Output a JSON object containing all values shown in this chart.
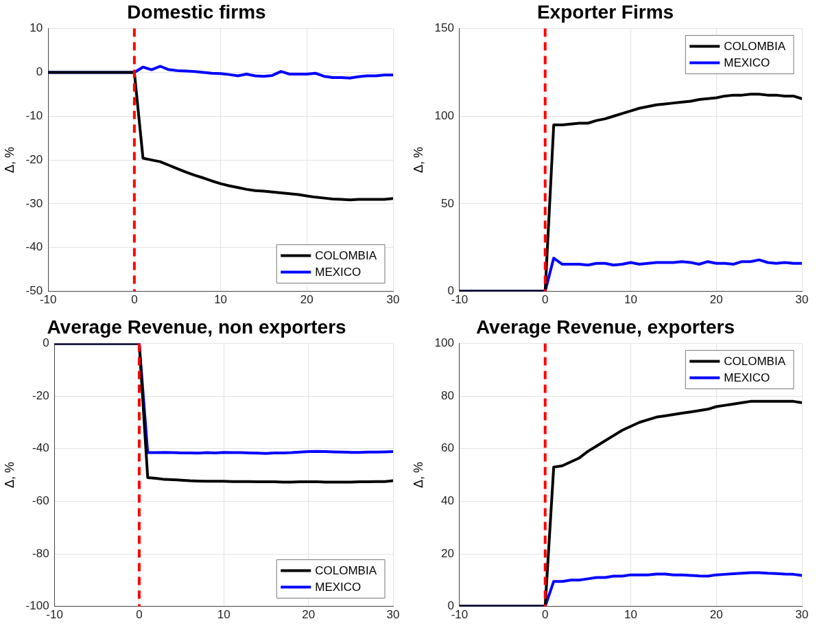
{
  "chart_data": [
    {
      "type": "line",
      "title": "Domestic firms",
      "ylabel": "Δ, %",
      "x": [
        -10,
        0,
        1,
        2,
        3,
        4,
        5,
        6,
        7,
        8,
        9,
        10,
        11,
        12,
        13,
        14,
        15,
        16,
        17,
        18,
        19,
        20,
        21,
        22,
        23,
        24,
        25,
        26,
        27,
        28,
        29,
        30
      ],
      "xlim": [
        -10,
        30
      ],
      "xticks": [
        -10,
        0,
        10,
        20,
        30
      ],
      "ylim": [
        -50,
        10
      ],
      "yticks": [
        -50,
        -40,
        -30,
        -20,
        -10,
        0,
        10
      ],
      "grid": true,
      "legend": "bottom right",
      "line_style": "solid",
      "marker": "none",
      "ref_lines": [
        {
          "axis": "x",
          "value": 0,
          "color": "#ff0000",
          "line_style": "dashed"
        }
      ],
      "series": [
        {
          "name": "COLOMBIA",
          "color": "#000000",
          "values": [
            0,
            0,
            -19.6,
            -20,
            -20.4,
            -21.2,
            -22,
            -22.8,
            -23.5,
            -24.1,
            -24.8,
            -25.4,
            -25.9,
            -26.3,
            -26.7,
            -27,
            -27.1,
            -27.3,
            -27.5,
            -27.7,
            -27.9,
            -28.2,
            -28.5,
            -28.7,
            -28.9,
            -29,
            -29.1,
            -29,
            -29,
            -29,
            -29,
            -28.8
          ]
        },
        {
          "name": "MEXICO",
          "color": "#0000ff",
          "values": [
            0,
            0,
            1.2,
            0.6,
            1.4,
            0.6,
            0.4,
            0.3,
            0.2,
            0,
            -0.2,
            -0.3,
            -0.5,
            -0.8,
            -0.4,
            -0.8,
            -0.9,
            -0.7,
            0.2,
            -0.4,
            -0.4,
            -0.4,
            -0.2,
            -0.9,
            -1.2,
            -1.2,
            -1.3,
            -1,
            -0.8,
            -0.8,
            -0.6,
            -0.6
          ]
        }
      ]
    },
    {
      "type": "line",
      "title": "Exporter Firms",
      "ylabel": "Δ, %",
      "x": [
        -10,
        0,
        1,
        2,
        3,
        4,
        5,
        6,
        7,
        8,
        9,
        10,
        11,
        12,
        13,
        14,
        15,
        16,
        17,
        18,
        19,
        20,
        21,
        22,
        23,
        24,
        25,
        26,
        27,
        28,
        29,
        30
      ],
      "xlim": [
        -10,
        30
      ],
      "xticks": [
        -10,
        0,
        10,
        20,
        30
      ],
      "ylim": [
        0,
        150
      ],
      "yticks": [
        0,
        50,
        100,
        150
      ],
      "grid": true,
      "legend": "top right",
      "line_style": "solid",
      "marker": "none",
      "ref_lines": [
        {
          "axis": "x",
          "value": 0,
          "color": "#ff0000",
          "line_style": "dashed"
        }
      ],
      "series": [
        {
          "name": "COLOMBIA",
          "color": "#000000",
          "values": [
            0,
            0,
            95,
            95,
            95.5,
            96,
            96,
            97.5,
            98.5,
            100,
            101.5,
            103,
            104.5,
            105.5,
            106.5,
            107,
            107.5,
            108,
            108.5,
            109.5,
            110,
            110.5,
            111.5,
            112,
            112,
            112.5,
            112.5,
            112,
            112,
            111.5,
            111.5,
            110
          ]
        },
        {
          "name": "MEXICO",
          "color": "#0000ff",
          "values": [
            0,
            0,
            19,
            15.5,
            15.5,
            15.5,
            15,
            16,
            16,
            15,
            15.5,
            16.5,
            15.5,
            16,
            16.5,
            16.5,
            16.5,
            17,
            16.5,
            15.5,
            17,
            16,
            16,
            15.5,
            17,
            17,
            18,
            16.5,
            16,
            16.5,
            16,
            16
          ]
        }
      ]
    },
    {
      "type": "line",
      "title": "Average Revenue, non exporters",
      "ylabel": "Δ, %",
      "x": [
        -10,
        0,
        1,
        2,
        3,
        4,
        5,
        6,
        7,
        8,
        9,
        10,
        11,
        12,
        13,
        14,
        15,
        16,
        17,
        18,
        19,
        20,
        21,
        22,
        23,
        24,
        25,
        26,
        27,
        28,
        29,
        30
      ],
      "xlim": [
        -10,
        30
      ],
      "xticks": [
        -10,
        0,
        10,
        20,
        30
      ],
      "ylim": [
        -100,
        0
      ],
      "yticks": [
        -100,
        -80,
        -60,
        -40,
        -20,
        0
      ],
      "grid": true,
      "legend": "bottom right",
      "line_style": "solid",
      "marker": "none",
      "ref_lines": [
        {
          "axis": "x",
          "value": 0,
          "color": "#ff0000",
          "line_style": "dashed"
        }
      ],
      "series": [
        {
          "name": "COLOMBIA",
          "color": "#000000",
          "values": [
            0,
            0,
            -51,
            -51.3,
            -51.7,
            -51.8,
            -52,
            -52.2,
            -52.3,
            -52.4,
            -52.4,
            -52.4,
            -52.5,
            -52.5,
            -52.5,
            -52.6,
            -52.6,
            -52.6,
            -52.7,
            -52.7,
            -52.6,
            -52.6,
            -52.6,
            -52.7,
            -52.7,
            -52.7,
            -52.7,
            -52.6,
            -52.6,
            -52.5,
            -52.5,
            -52.2
          ]
        },
        {
          "name": "MEXICO",
          "color": "#0000ff",
          "values": [
            0,
            0,
            -41.5,
            -41.5,
            -41.4,
            -41.5,
            -41.6,
            -41.6,
            -41.7,
            -41.5,
            -41.6,
            -41.4,
            -41.5,
            -41.5,
            -41.6,
            -41.7,
            -41.8,
            -41.6,
            -41.6,
            -41.5,
            -41.3,
            -41.1,
            -41,
            -41.1,
            -41.2,
            -41.3,
            -41.4,
            -41.4,
            -41.3,
            -41.3,
            -41.2,
            -41.1
          ]
        }
      ]
    },
    {
      "type": "line",
      "title": "Average Revenue, exporters",
      "ylabel": "Δ, %",
      "x": [
        -10,
        0,
        1,
        2,
        3,
        4,
        5,
        6,
        7,
        8,
        9,
        10,
        11,
        12,
        13,
        14,
        15,
        16,
        17,
        18,
        19,
        20,
        21,
        22,
        23,
        24,
        25,
        26,
        27,
        28,
        29,
        30
      ],
      "xlim": [
        -10,
        30
      ],
      "xticks": [
        -10,
        0,
        10,
        20,
        30
      ],
      "ylim": [
        0,
        100
      ],
      "yticks": [
        0,
        20,
        40,
        60,
        80,
        100
      ],
      "grid": true,
      "legend": "top right",
      "line_style": "solid",
      "marker": "none",
      "ref_lines": [
        {
          "axis": "x",
          "value": 0,
          "color": "#ff0000",
          "line_style": "dashed"
        }
      ],
      "series": [
        {
          "name": "COLOMBIA",
          "color": "#000000",
          "values": [
            0,
            0,
            53,
            53.5,
            55,
            56.5,
            59,
            61,
            63,
            65,
            67,
            68.5,
            70,
            71,
            72,
            72.5,
            73,
            73.5,
            74,
            74.5,
            75,
            76,
            76.5,
            77,
            77.5,
            78,
            78,
            78,
            78,
            78,
            78,
            77.5
          ]
        },
        {
          "name": "MEXICO",
          "color": "#0000ff",
          "values": [
            0,
            0,
            9.5,
            9.5,
            10,
            10,
            10.5,
            11,
            11,
            11.5,
            11.5,
            12,
            12,
            12,
            12.3,
            12.3,
            12,
            12,
            11.8,
            11.6,
            11.5,
            12,
            12.2,
            12.4,
            12.6,
            12.8,
            12.8,
            12.6,
            12.5,
            12.3,
            12.2,
            11.8
          ]
        }
      ]
    }
  ]
}
